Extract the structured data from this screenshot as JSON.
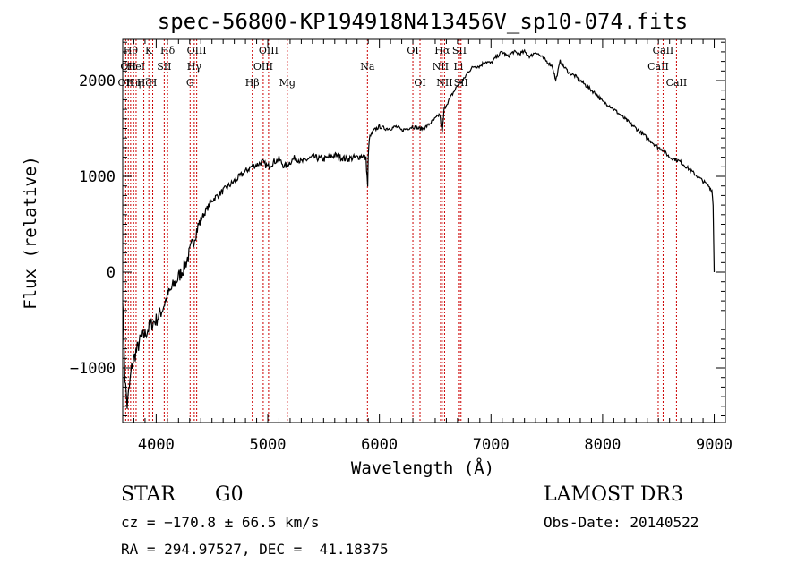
{
  "chart_data": {
    "type": "line",
    "title": "spec-56800-KP194918N413456V_sp10-074.fits",
    "xlabel": "Wavelength (Å)",
    "ylabel": "Flux (relative)",
    "xlim": [
      3700,
      9100
    ],
    "ylim": [
      -1570,
      2430
    ],
    "x_ticks": [
      4000,
      5000,
      6000,
      7000,
      8000,
      9000
    ],
    "x_tick_labels": [
      "4000",
      "5000",
      "6000",
      "7000",
      "8000",
      "9000"
    ],
    "y_ticks": [
      -1000,
      0,
      1000,
      2000
    ],
    "y_tick_labels": [
      "−1000",
      "0",
      "1000",
      "2000"
    ],
    "grid": false,
    "series": [
      {
        "name": "flux",
        "x": [
          3700,
          3720,
          3740,
          3760,
          3780,
          3800,
          3830,
          3860,
          3900,
          3950,
          4000,
          4050,
          4100,
          4150,
          4200,
          4250,
          4300,
          4350,
          4400,
          4450,
          4500,
          4550,
          4600,
          4650,
          4700,
          4750,
          4800,
          4850,
          4900,
          4950,
          5000,
          5050,
          5100,
          5150,
          5200,
          5250,
          5300,
          5400,
          5500,
          5600,
          5700,
          5800,
          5850,
          5880,
          5895,
          5900,
          5910,
          5950,
          6000,
          6050,
          6100,
          6150,
          6200,
          6250,
          6300,
          6350,
          6400,
          6450,
          6500,
          6540,
          6563,
          6580,
          6600,
          6650,
          6700,
          6750,
          6800,
          6850,
          6900,
          6950,
          7000,
          7050,
          7100,
          7150,
          7200,
          7250,
          7300,
          7350,
          7400,
          7450,
          7500,
          7550,
          7580,
          7600,
          7620,
          7650,
          7700,
          7750,
          7800,
          7850,
          7900,
          7950,
          8000,
          8050,
          8100,
          8150,
          8200,
          8250,
          8300,
          8350,
          8400,
          8450,
          8500,
          8540,
          8560,
          8600,
          8650,
          8700,
          8750,
          8800,
          8850,
          8900,
          8950,
          8980,
          8990,
          9000
        ],
        "y": [
          -250,
          -1100,
          -1400,
          -1200,
          -1000,
          -900,
          -800,
          -700,
          -650,
          -550,
          -500,
          -400,
          -250,
          -150,
          -50,
          50,
          200,
          400,
          550,
          650,
          750,
          800,
          850,
          900,
          950,
          1000,
          1050,
          1100,
          1120,
          1150,
          1100,
          1150,
          1180,
          1100,
          1150,
          1200,
          1150,
          1200,
          1180,
          1220,
          1180,
          1200,
          1220,
          1180,
          900,
          1200,
          1400,
          1480,
          1520,
          1500,
          1500,
          1520,
          1480,
          1500,
          1520,
          1500,
          1500,
          1550,
          1600,
          1650,
          1450,
          1700,
          1750,
          1850,
          1950,
          2000,
          2100,
          2150,
          2150,
          2200,
          2180,
          2250,
          2300,
          2250,
          2300,
          2280,
          2300,
          2250,
          2300,
          2250,
          2200,
          2150,
          2000,
          2100,
          2200,
          2150,
          2080,
          2050,
          2000,
          1950,
          1900,
          1850,
          1780,
          1750,
          1700,
          1650,
          1600,
          1550,
          1500,
          1450,
          1400,
          1350,
          1300,
          1280,
          1250,
          1200,
          1180,
          1150,
          1100,
          1050,
          1000,
          950,
          900,
          850,
          700,
          0
        ]
      }
    ],
    "line_markers": [
      {
        "wavelength": 3727,
        "label": "OII",
        "row": 2
      },
      {
        "wavelength": 3750,
        "label": "OII",
        "row": 1
      },
      {
        "wavelength": 3771,
        "label": "Hθ",
        "row": 0
      },
      {
        "wavelength": 3798,
        "label": "Hη",
        "row": 2
      },
      {
        "wavelength": 3820,
        "label": "HeI",
        "row": 1
      },
      {
        "wavelength": 3889,
        "label": "Hζ",
        "row": 2
      },
      {
        "wavelength": 3934,
        "label": "K",
        "row": 0
      },
      {
        "wavelength": 3969,
        "label": "H",
        "row": 2
      },
      {
        "wavelength": 4072,
        "label": "SII",
        "row": 1
      },
      {
        "wavelength": 4102,
        "label": "Hδ",
        "row": 0
      },
      {
        "wavelength": 4304,
        "label": "G",
        "row": 2
      },
      {
        "wavelength": 4341,
        "label": "Hγ",
        "row": 1
      },
      {
        "wavelength": 4363,
        "label": "OIII",
        "row": 0
      },
      {
        "wavelength": 4861,
        "label": "Hβ",
        "row": 2
      },
      {
        "wavelength": 4959,
        "label": "OIII",
        "row": 1
      },
      {
        "wavelength": 5007,
        "label": "OIII",
        "row": 0
      },
      {
        "wavelength": 5175,
        "label": "Mg",
        "row": 2
      },
      {
        "wavelength": 5893,
        "label": "Na",
        "row": 1
      },
      {
        "wavelength": 6300,
        "label": "OI",
        "row": 0
      },
      {
        "wavelength": 6364,
        "label": "OI",
        "row": 2
      },
      {
        "wavelength": 6548,
        "label": "NII",
        "row": 1
      },
      {
        "wavelength": 6563,
        "label": "Hα",
        "row": 0
      },
      {
        "wavelength": 6584,
        "label": "NII",
        "row": 2
      },
      {
        "wavelength": 6708,
        "label": "Li",
        "row": 1
      },
      {
        "wavelength": 6717,
        "label": "SII",
        "row": 0
      },
      {
        "wavelength": 6731,
        "label": "SII",
        "row": 2
      },
      {
        "wavelength": 8498,
        "label": "CaII",
        "row": 1
      },
      {
        "wavelength": 8542,
        "label": "CaII",
        "row": 0
      },
      {
        "wavelength": 8662,
        "label": "CaII",
        "row": 2
      }
    ],
    "colors": {
      "spectrum": "#000000",
      "marker_line": "#cc0000",
      "axis": "#000000"
    }
  },
  "footer": {
    "object_class": "STAR",
    "subclass": "G0",
    "survey": "LAMOST DR3",
    "redshift": "cz = −170.8 ± 66.5 km/s",
    "obs_date": "Obs-Date: 20140522",
    "coords": "RA = 294.97527, DEC =  41.18375"
  }
}
